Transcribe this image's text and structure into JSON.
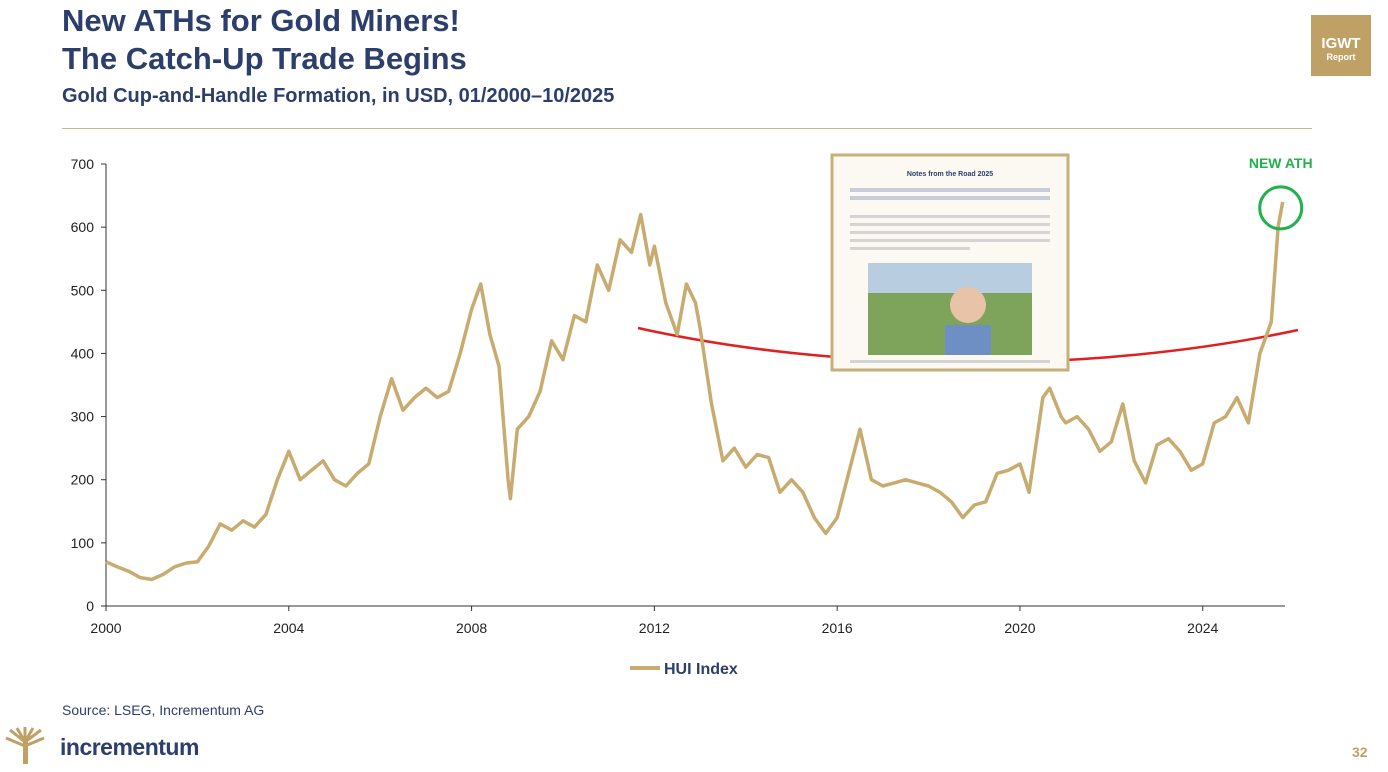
{
  "header": {
    "title_line1": "New ATHs for Gold Miners!",
    "title_line2": "The Catch-Up Trade Begins",
    "subtitle": "Gold Cup-and-Handle Formation, in USD, 01/2000–10/2025",
    "badge_line1": "IGWT",
    "badge_line2": "Report"
  },
  "chart_data": {
    "type": "line",
    "annotation": "NEW ATH",
    "inset_title": "Notes from the Road 2025",
    "x": [
      2000,
      2000.25,
      2000.5,
      2000.75,
      2001,
      2001.25,
      2001.5,
      2001.75,
      2002,
      2002.25,
      2002.5,
      2002.75,
      2003,
      2003.25,
      2003.5,
      2003.75,
      2004,
      2004.25,
      2004.5,
      2004.75,
      2005,
      2005.25,
      2005.5,
      2005.75,
      2006,
      2006.25,
      2006.5,
      2006.75,
      2007,
      2007.25,
      2007.5,
      2007.75,
      2008,
      2008.2,
      2008.4,
      2008.6,
      2008.8,
      2008.85,
      2009,
      2009.25,
      2009.5,
      2009.75,
      2010,
      2010.25,
      2010.5,
      2010.75,
      2011,
      2011.25,
      2011.5,
      2011.7,
      2011.9,
      2012,
      2012.25,
      2012.5,
      2012.7,
      2012.9,
      2013,
      2013.25,
      2013.5,
      2013.75,
      2014,
      2014.25,
      2014.5,
      2014.75,
      2015,
      2015.25,
      2015.5,
      2015.75,
      2016,
      2016.25,
      2016.5,
      2016.75,
      2017,
      2017.25,
      2017.5,
      2017.75,
      2018,
      2018.25,
      2018.5,
      2018.75,
      2019,
      2019.25,
      2019.5,
      2019.75,
      2020,
      2020.2,
      2020.5,
      2020.65,
      2020.9,
      2021,
      2021.25,
      2021.5,
      2021.75,
      2022,
      2022.25,
      2022.5,
      2022.75,
      2023,
      2023.25,
      2023.5,
      2023.75,
      2024,
      2024.25,
      2024.5,
      2024.75,
      2025,
      2025.25,
      2025.5,
      2025.65,
      2025.75
    ],
    "series": [
      {
        "name": "HUI Index",
        "color": "#c8ab6e",
        "values": [
          70,
          62,
          55,
          45,
          42,
          50,
          62,
          68,
          70,
          95,
          130,
          120,
          135,
          125,
          145,
          200,
          245,
          200,
          215,
          230,
          200,
          190,
          210,
          225,
          300,
          360,
          310,
          330,
          345,
          330,
          340,
          400,
          470,
          510,
          430,
          380,
          200,
          170,
          280,
          300,
          340,
          420,
          390,
          460,
          450,
          540,
          500,
          580,
          560,
          620,
          540,
          570,
          480,
          430,
          510,
          480,
          440,
          320,
          230,
          250,
          220,
          240,
          235,
          180,
          200,
          180,
          140,
          115,
          140,
          210,
          280,
          200,
          190,
          195,
          200,
          195,
          190,
          180,
          165,
          140,
          160,
          165,
          210,
          215,
          225,
          180,
          330,
          345,
          300,
          290,
          300,
          280,
          245,
          260,
          320,
          230,
          195,
          255,
          265,
          245,
          215,
          225,
          290,
          300,
          330,
          290,
          400,
          450,
          600,
          640
        ]
      }
    ],
    "xlim": [
      2000,
      2025.8
    ],
    "ylim": [
      0,
      700
    ],
    "xticks": [
      2000,
      2004,
      2008,
      2012,
      2016,
      2020,
      2024
    ],
    "yticks": [
      0,
      100,
      200,
      300,
      400,
      500,
      600,
      700
    ]
  },
  "footer": {
    "source": "Source: LSEG, Incrementum AG",
    "brand": "incrementum",
    "page": "32"
  }
}
